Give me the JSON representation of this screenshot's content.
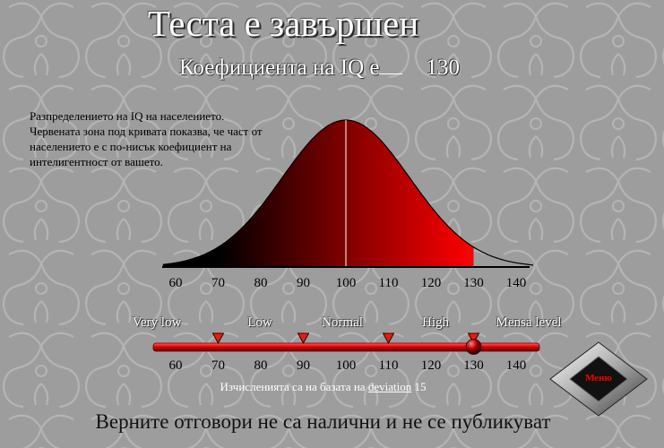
{
  "title": "Теста е завършен",
  "iq": {
    "label_before": "Коефициента на IQ е",
    "value": "130"
  },
  "description": "Разпределението на IQ на населението. Червената зона под кривата показва, че част от населението е с по-нисък коефициент на интелигентност от вашето.",
  "scale": {
    "categories": [
      "Very low",
      "Low",
      "Normal",
      "High",
      "Mensa level"
    ],
    "score": 130,
    "markers": [
      70,
      90,
      110,
      130
    ]
  },
  "chart_data": {
    "type": "area",
    "x": [
      60,
      70,
      80,
      90,
      100,
      110,
      120,
      130,
      140
    ],
    "tick_labels": [
      "60",
      "70",
      "80",
      "90",
      "100",
      "110",
      "120",
      "130",
      "140"
    ],
    "mean": 100,
    "deviation": 15,
    "shaded_below": 130,
    "xlim": [
      57,
      144
    ],
    "colors": {
      "curve_dark": "#000000",
      "curve_light": "#ff0000",
      "marker": "#e02010"
    }
  },
  "footer": {
    "text_before": "Изчисленията са на базата на",
    "link_text": "deviation",
    "value": "15"
  },
  "bottom_text": "Верните отговори не са налични и не се публикуват",
  "menu": {
    "label": "Меню"
  }
}
